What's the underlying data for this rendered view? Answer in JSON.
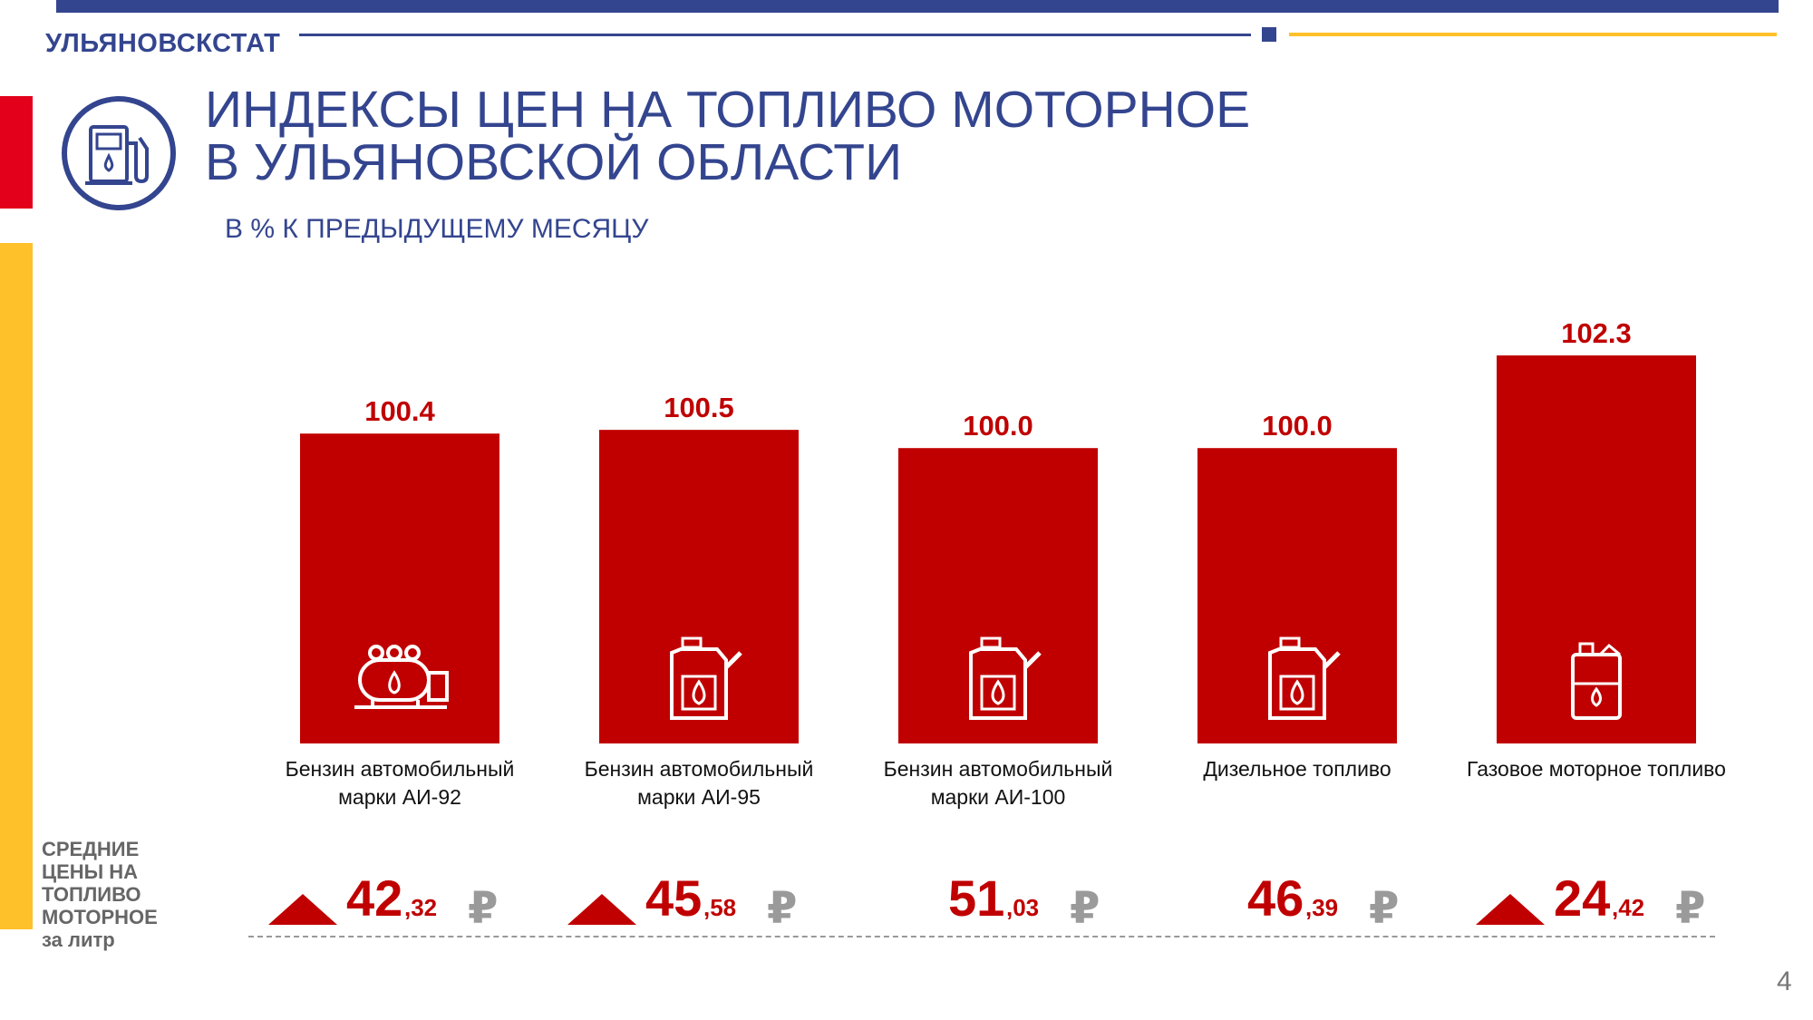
{
  "header": {
    "brand": "УЛЬЯНОВСКСТАТ",
    "title_line1": "ИНДЕКСЫ ЦЕН НА ТОПЛИВО МОТОРНОЕ",
    "title_line2": "В УЛЬЯНОВСКОЙ ОБЛАСТИ",
    "subtitle": "В % К ПРЕДЫДУЩЕМУ МЕСЯЦУ",
    "icon": "fuel-pump-icon"
  },
  "colors": {
    "primary_blue": "#34458f",
    "bar_red": "#c00000",
    "accent_red": "#e3001b",
    "accent_yellow": "#ffc12a"
  },
  "chart_data": {
    "type": "bar",
    "categories": [
      "Бензин автомобильный марки АИ-92",
      "Бензин автомобильный марки АИ-95",
      "Бензин автомобильный марки АИ-100",
      "Дизельное топливо",
      "Газовое моторное топливо"
    ],
    "values": [
      100.4,
      100.5,
      100.0,
      100.0,
      102.3
    ],
    "data_labels": [
      "100.4",
      "100.5",
      "100.0",
      "100.0",
      "102.3"
    ],
    "ylim": [
      0,
      102.3
    ],
    "icons": [
      "gas-tank-icon",
      "fuel-canister-icon",
      "fuel-canister-icon",
      "fuel-canister-icon",
      "jerrycan-icon"
    ],
    "label_lines": [
      [
        "Бензин автомобильный",
        "марки АИ-92"
      ],
      [
        "Бензин автомобильный",
        "марки АИ-95"
      ],
      [
        "Бензин автомобильный",
        "марки АИ-100"
      ],
      [
        "Дизельное топливо"
      ],
      [
        "Газовое моторное топливо"
      ]
    ]
  },
  "prices": {
    "caption_lines": [
      "СРЕДНИЕ",
      "ЦЕНЫ НА",
      "ТОПЛИВО",
      "МОТОРНОЕ",
      "за литр"
    ],
    "currency": "₽",
    "items": [
      {
        "whole": "42",
        "frac": ",32",
        "trend": "up"
      },
      {
        "whole": "45",
        "frac": ",58",
        "trend": "up"
      },
      {
        "whole": "51",
        "frac": ",03",
        "trend": "none"
      },
      {
        "whole": "46",
        "frac": ",39",
        "trend": "none"
      },
      {
        "whole": "24",
        "frac": ",42",
        "trend": "up"
      }
    ]
  },
  "footer": {
    "page_number": "4"
  }
}
